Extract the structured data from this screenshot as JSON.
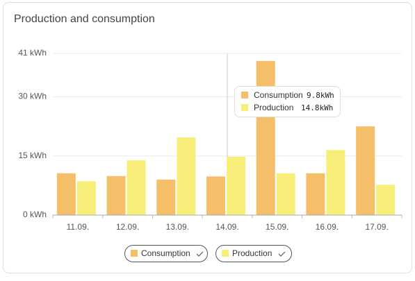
{
  "chart_data": {
    "type": "bar",
    "title": "Production and consumption",
    "categories": [
      "11.09.",
      "12.09.",
      "13.09.",
      "14.09.",
      "15.09.",
      "16.09.",
      "17.09."
    ],
    "series": [
      {
        "name": "Consumption",
        "color": "#f5bf6a",
        "values": [
          10.6,
          9.9,
          9.0,
          9.8,
          39.1,
          10.6,
          22.5
        ]
      },
      {
        "name": "Production",
        "color": "#f7ef7a",
        "values": [
          8.6,
          13.9,
          19.7,
          14.8,
          10.6,
          16.5,
          7.7
        ]
      }
    ],
    "ylim": [
      0,
      41
    ],
    "yticks": [
      {
        "value": 0,
        "label": "0 kWh"
      },
      {
        "value": 15,
        "label": "15 kWh"
      },
      {
        "value": 30,
        "label": "30 kWh"
      },
      {
        "value": 41,
        "label": "41 kWh"
      }
    ],
    "grid": true,
    "tooltip": {
      "values": [
        "9.8kWh",
        "14.8kWh"
      ]
    }
  }
}
